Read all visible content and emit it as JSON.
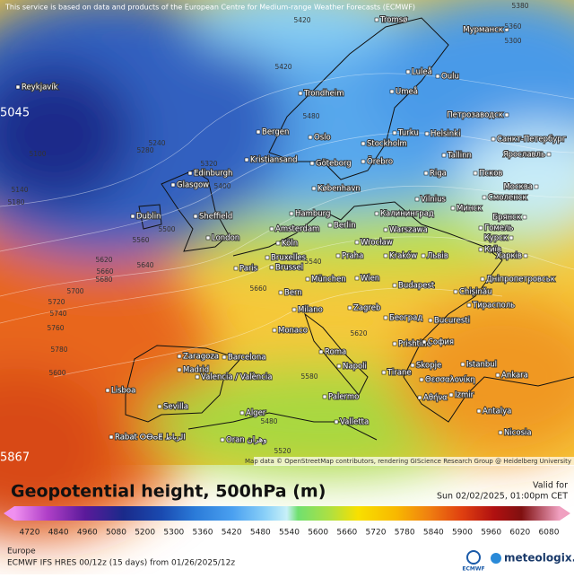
{
  "header_note": "This service is based on data and products of the European Centre for Medium-range Weather Forecasts (ECMWF)",
  "map": {
    "cities": [
      "Reykjavík",
      "Tromsø",
      "Мурманск",
      "Luleå",
      "Oulu",
      "Umeå",
      "Trondheim",
      "Bergen",
      "Oslo",
      "Turku",
      "Helsinki",
      "Петрозаводск",
      "Санкт-Петербург",
      "Stockholm",
      "Tallinn",
      "Kristiansand",
      "Göteborg",
      "Örebro",
      "Riga",
      "Псков",
      "Ярославль",
      "Glasgow",
      "Edinburgh",
      "København",
      "Vilnius",
      "Минск",
      "Смоленск",
      "Москва",
      "Dublin",
      "Sheffield",
      "Hamburg",
      "Калининград",
      "Брянск",
      "London",
      "Amsterdam",
      "Berlin",
      "Warszawa",
      "Гомель",
      "Курск",
      "Köln",
      "Wrocław",
      "Київ",
      "Paris",
      "Bruxelles",
      "Brussel",
      "Praha",
      "Kraków",
      "Львів",
      "Харків",
      "München",
      "Wien",
      "Budapest",
      "Дніпропетровськ",
      "Bern",
      "Chișinău",
      "Тирасполь",
      "Zagreb",
      "Milano",
      "Београд",
      "Bucuresti",
      "Monaco",
      "Prishtine",
      "София",
      "Zaragoza",
      "Barcelona",
      "Roma",
      "Napoli",
      "Skopje",
      "Istanbul",
      "Madrid",
      "Valencia / València",
      "Tirane",
      "Θεσσαλονίκη",
      "Ankara",
      "Lisboa",
      "Izmir",
      "Αθήνα",
      "Sevilla",
      "Palermo",
      "Antalya",
      "Alger",
      "Valletta",
      "Nicosia",
      "Rabat ⵔⴱⴰⵟ الرباط",
      "Oran وهران"
    ],
    "contour_labels": [
      "5380",
      "5360",
      "5300",
      "5420",
      "5420",
      "5480",
      "5240",
      "5280",
      "5320",
      "5100",
      "5140",
      "5180",
      "5400",
      "5500",
      "5560",
      "5620",
      "5660",
      "5640",
      "5680",
      "5700",
      "5720",
      "5740",
      "5760",
      "5780",
      "5600",
      "5660",
      "5540",
      "5480",
      "5520",
      "5620",
      "5580"
    ],
    "extremes": [
      "5045",
      "5867"
    ],
    "attribution": "Map data © OpenStreetMap contributors, rendering GIScience Research Group @ Heidelberg University"
  },
  "title": "Geopotential height, 500hPa (m)",
  "valid_label": "Valid for",
  "valid_time": "Sun 02/02/2025, 01:00pm CET",
  "legend_labels": [
    "4720",
    "4840",
    "4960",
    "5080",
    "5200",
    "5300",
    "5360",
    "5420",
    "5480",
    "5540",
    "5600",
    "5660",
    "5720",
    "5780",
    "5840",
    "5900",
    "5960",
    "6020",
    "6080"
  ],
  "region": "Europe",
  "model_info": "ECMWF IFS HRES 00/12z (15 days) from 01/26/2025/12z",
  "ecmwf_logo": "ECMWF",
  "brand": "meteologix.com"
}
